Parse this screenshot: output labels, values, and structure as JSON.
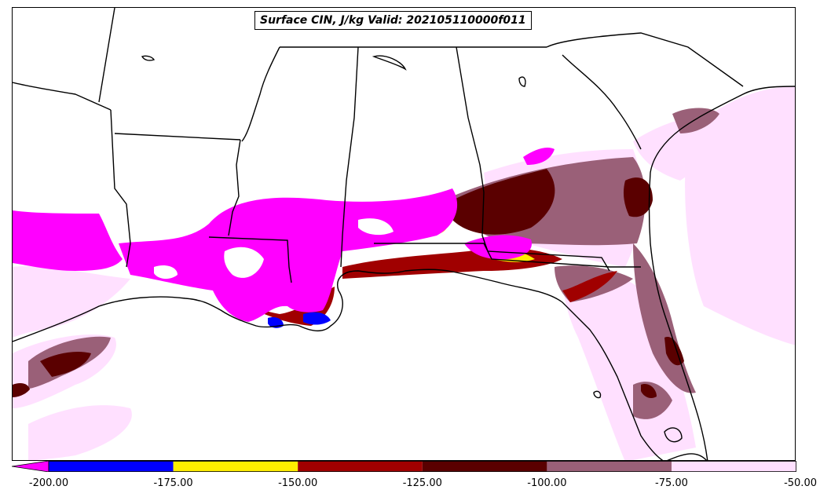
{
  "title": "Surface CIN, J/kg Valid: 202105110000f011",
  "colors": {
    "below_min": "#ff00ff",
    "water_line": "#000000",
    "state_line": "#000000"
  },
  "legend": {
    "bins": [
      {
        "from": -200,
        "to": -175,
        "color": "#0000ff"
      },
      {
        "from": -175,
        "to": -150,
        "color": "#ffee00"
      },
      {
        "from": -150,
        "to": -125,
        "color": "#a00000"
      },
      {
        "from": -125,
        "to": -100,
        "color": "#5a0000"
      },
      {
        "from": -100,
        "to": -75,
        "color": "#9a6078"
      },
      {
        "from": -75,
        "to": -50,
        "color": "#ffe0ff"
      }
    ],
    "extend_below_color": "#ff00ff",
    "ticks": [
      "-200.00",
      "-175.00",
      "-150.00",
      "-125.00",
      "-100.00",
      "-75.00",
      "-50.00"
    ]
  }
}
